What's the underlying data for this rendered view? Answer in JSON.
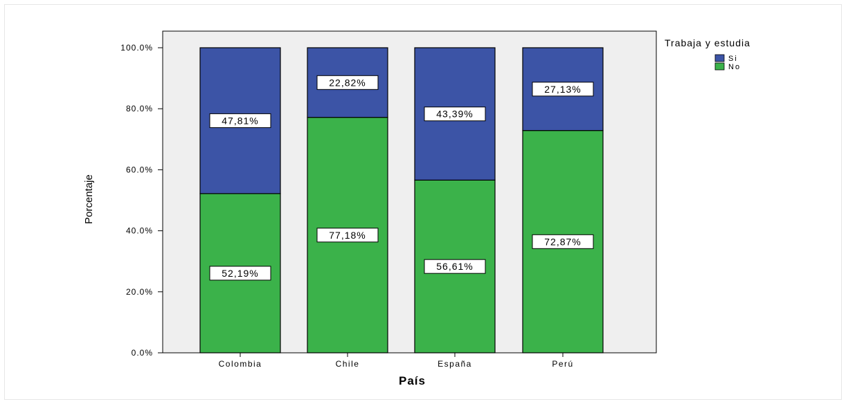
{
  "chart_data": {
    "type": "bar",
    "stacked": true,
    "title": "",
    "xlabel": "País",
    "ylabel": "Porcentaje",
    "ylim": [
      0,
      100
    ],
    "yticks": [
      0,
      20,
      40,
      60,
      80,
      100
    ],
    "ytick_labels": [
      "0.0%",
      "20.0%",
      "40.0%",
      "60.0%",
      "80.0%",
      "100.0%"
    ],
    "categories": [
      "Colombia",
      "Chile",
      "España",
      "Perú"
    ],
    "legend": {
      "title": "Trabaja y estudia",
      "position": "top-right"
    },
    "series": [
      {
        "name": "No",
        "color": "#3bb24a",
        "values": [
          52.19,
          77.18,
          56.61,
          72.87
        ],
        "labels": [
          "52,19%",
          "77,18%",
          "56,61%",
          "72,87%"
        ]
      },
      {
        "name": "Si",
        "color": "#3c54a6",
        "values": [
          47.81,
          22.82,
          43.39,
          27.13
        ],
        "labels": [
          "47,81%",
          "22,82%",
          "43,39%",
          "27,13%"
        ]
      }
    ],
    "legend_order": [
      "Si",
      "No"
    ],
    "plot_background": "#efefef",
    "grid": false
  }
}
